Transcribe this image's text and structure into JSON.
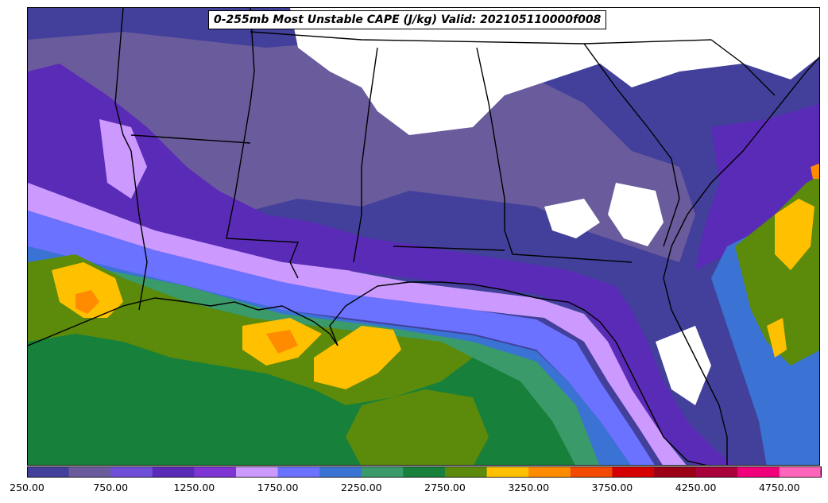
{
  "title": "0-255mb Most Unstable CAPE (J/kg) Valid: 202105110000f008",
  "colorbar": {
    "colors": [
      "#42409a",
      "#6a5b9c",
      "#6f4fd8",
      "#5a2bb7",
      "#7f35d4",
      "#cc99ff",
      "#6a72ff",
      "#3a73d4",
      "#3a9a6a",
      "#17803a",
      "#5c8a0a",
      "#ffc000",
      "#ff8c00",
      "#f24a00",
      "#d40000",
      "#9c0016",
      "#a8003a",
      "#f0007a",
      "#ff66bb"
    ],
    "extend_color": "#ff99cc",
    "tick_labels": [
      "250.00",
      "750.00",
      "1250.00",
      "1750.00",
      "2250.00",
      "2750.00",
      "3250.00",
      "3750.00",
      "4250.00",
      "4750.00"
    ]
  }
}
